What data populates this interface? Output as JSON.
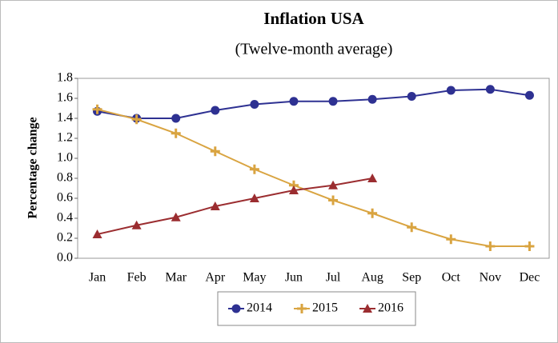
{
  "chart_data": {
    "type": "line",
    "title": "Inflation USA",
    "subtitle": "(Twelve-month average)",
    "y_label": "Percentage change",
    "categories": [
      "Jan",
      "Feb",
      "Mar",
      "Apr",
      "May",
      "Jun",
      "Jul",
      "Aug",
      "Sep",
      "Oct",
      "Nov",
      "Dec"
    ],
    "series": [
      {
        "name": "2014",
        "color": "#2e3192",
        "marker": "circle",
        "values": [
          1.47,
          1.4,
          1.4,
          1.48,
          1.54,
          1.57,
          1.57,
          1.59,
          1.62,
          1.68,
          1.69,
          1.63
        ]
      },
      {
        "name": "2015",
        "color": "#d9a441",
        "marker": "plus",
        "values": [
          1.49,
          1.39,
          1.25,
          1.07,
          0.89,
          0.73,
          0.58,
          0.45,
          0.31,
          0.19,
          0.12,
          0.12
        ]
      },
      {
        "name": "2016",
        "color": "#9b2d30",
        "marker": "triangle",
        "values": [
          0.24,
          0.33,
          0.41,
          0.52,
          0.6,
          0.68,
          0.73,
          0.8,
          null,
          null,
          null,
          null
        ]
      }
    ],
    "ylim": [
      0,
      1.8
    ],
    "yticks": [
      {
        "value": 0,
        "label": "0.0"
      },
      0.2,
      0.4,
      0.6,
      0.8,
      {
        "value": 1,
        "label": "1.0"
      },
      1.2,
      1.4,
      1.6,
      1.8
    ],
    "grid": false,
    "legend": "bottom"
  }
}
